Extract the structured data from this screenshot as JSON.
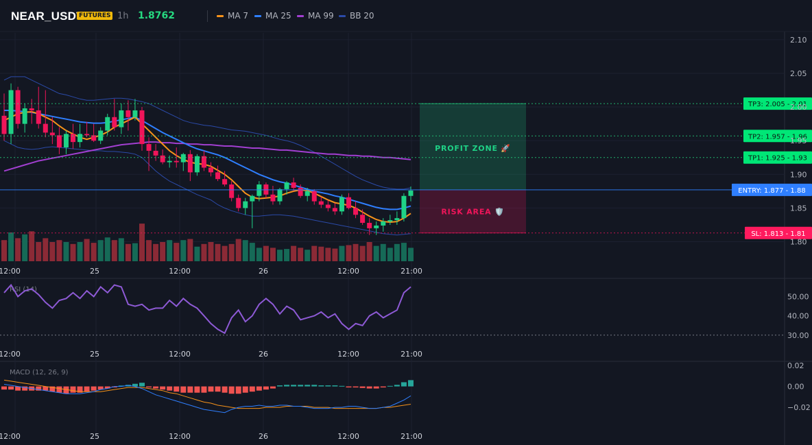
{
  "header": {
    "symbol": "NEAR_USDT",
    "badge": "FUTURES",
    "timeframe": "1h",
    "price": "1.8762",
    "legend": [
      {
        "label": "MA 7",
        "color": "#f7931a"
      },
      {
        "label": "MA 25",
        "color": "#2f7fff"
      },
      {
        "label": "MA 99",
        "color": "#a23fd1"
      },
      {
        "label": "BB 20",
        "color": "#2b4aa8"
      }
    ]
  },
  "colors": {
    "up": "#1fd286",
    "down": "#f0155a",
    "vol_up": "#166a57",
    "vol_down": "#8b2a36",
    "background": "#131722"
  },
  "price_axis": {
    "min": 1.77,
    "max": 2.11,
    "ticks": [
      "2.10",
      "2.05",
      "2.00",
      "1.95",
      "1.90",
      "1.85",
      "1.80"
    ]
  },
  "time_axis": {
    "labels": [
      "12:00",
      "25",
      "12:00",
      "26",
      "12:00",
      "21:00"
    ]
  },
  "zones": {
    "profit_label": "PROFIT ZONE 🚀",
    "risk_label": "RISK AREA 🛡️"
  },
  "levels": [
    {
      "label": "TP3: 2.005 - 2.01",
      "price": 2.005,
      "kind": "tp"
    },
    {
      "label": "TP2: 1.957 - 1.96",
      "price": 1.957,
      "kind": "tp"
    },
    {
      "label": "TP1: 1.925 - 1.93",
      "price": 1.925,
      "kind": "tp"
    },
    {
      "label": "ENTRY: 1.877 - 1.88",
      "price": 1.877,
      "kind": "entry"
    },
    {
      "label": "SL: 1.813 - 1.81",
      "price": 1.813,
      "kind": "sl"
    }
  ],
  "rsi": {
    "title": "RSI (14)",
    "ticks": [
      "50.00",
      "40.00",
      "30.00"
    ],
    "min": 26,
    "max": 58,
    "reference": 30,
    "values": [
      52,
      56,
      50,
      53,
      54,
      51,
      47,
      44,
      48,
      49,
      52,
      49,
      53,
      50,
      55,
      52,
      56,
      55,
      46,
      45,
      46,
      43,
      44,
      44,
      48,
      45,
      49,
      46,
      44,
      40,
      36,
      33,
      31,
      39,
      43,
      37,
      40,
      46,
      49,
      46,
      41,
      45,
      43,
      38,
      39,
      40,
      42,
      39,
      41,
      36,
      33,
      36,
      35,
      40,
      42,
      39,
      41,
      43,
      52,
      55
    ]
  },
  "macd": {
    "title": "MACD (12, 26, 9)",
    "ticks": [
      "0.02",
      "0.00",
      "−0.02"
    ],
    "min": -0.037,
    "max": 0.022,
    "hist": [
      -0.003,
      -0.003,
      -0.004,
      -0.004,
      -0.004,
      -0.004,
      -0.004,
      -0.005,
      -0.006,
      -0.007,
      -0.006,
      -0.006,
      -0.005,
      -0.004,
      -0.003,
      -0.002,
      -0.001,
      0.0008,
      0.0015,
      0.0025,
      0.0035,
      -0.001,
      -0.002,
      -0.003,
      -0.004,
      -0.005,
      -0.006,
      -0.006,
      -0.006,
      -0.006,
      -0.005,
      -0.005,
      -0.006,
      -0.007,
      -0.007,
      -0.006,
      -0.005,
      -0.004,
      -0.003,
      -0.002,
      0.001,
      0.0015,
      0.0015,
      0.0015,
      0.0015,
      0.0015,
      0.001,
      0.001,
      0.001,
      0.0005,
      -0.001,
      -0.001,
      -0.0015,
      -0.002,
      -0.002,
      -0.001,
      0.0005,
      0.0015,
      0.004,
      0.006
    ],
    "macd_line": [
      0.002,
      0.001,
      0.0,
      -0.001,
      -0.002,
      -0.003,
      -0.004,
      -0.005,
      -0.006,
      -0.007,
      -0.007,
      -0.007,
      -0.006,
      -0.005,
      -0.003,
      -0.002,
      0.0,
      0.0,
      0.001,
      0.0,
      -0.002,
      -0.005,
      -0.008,
      -0.01,
      -0.012,
      -0.014,
      -0.016,
      -0.018,
      -0.02,
      -0.022,
      -0.023,
      -0.024,
      -0.025,
      -0.022,
      -0.02,
      -0.019,
      -0.019,
      -0.018,
      -0.019,
      -0.019,
      -0.018,
      -0.018,
      -0.019,
      -0.019,
      -0.02,
      -0.021,
      -0.021,
      -0.021,
      -0.02,
      -0.02,
      -0.019,
      -0.019,
      -0.02,
      -0.021,
      -0.021,
      -0.02,
      -0.019,
      -0.016,
      -0.013,
      -0.009
    ],
    "signal_line": [
      0.006,
      0.005,
      0.004,
      0.003,
      0.002,
      0.001,
      0.0,
      -0.001,
      -0.002,
      -0.003,
      -0.004,
      -0.005,
      -0.005,
      -0.005,
      -0.005,
      -0.004,
      -0.003,
      -0.002,
      -0.001,
      -0.001,
      -0.001,
      -0.002,
      -0.003,
      -0.004,
      -0.006,
      -0.007,
      -0.009,
      -0.011,
      -0.013,
      -0.015,
      -0.016,
      -0.018,
      -0.019,
      -0.02,
      -0.021,
      -0.021,
      -0.021,
      -0.021,
      -0.02,
      -0.02,
      -0.02,
      -0.019,
      -0.019,
      -0.019,
      -0.019,
      -0.02,
      -0.02,
      -0.02,
      -0.021,
      -0.021,
      -0.021,
      -0.021,
      -0.021,
      -0.021,
      -0.021,
      -0.02,
      -0.02,
      -0.019,
      -0.018,
      -0.017
    ]
  },
  "chart_data": {
    "type": "candlestick",
    "title": "NEAR_USDT",
    "xlabel": "",
    "ylabel": "",
    "ylim": [
      1.77,
      2.11
    ],
    "candles": [
      [
        1.987,
        2.02,
        1.95,
        1.96
      ],
      [
        1.96,
        2.035,
        1.945,
        2.025
      ],
      [
        2.025,
        2.03,
        1.968,
        1.975
      ],
      [
        1.975,
        2.005,
        1.962,
        1.998
      ],
      [
        1.998,
        2.012,
        1.975,
        1.995
      ],
      [
        1.995,
        2.03,
        1.968,
        1.975
      ],
      [
        1.975,
        2.025,
        1.955,
        1.962
      ],
      [
        1.962,
        1.985,
        1.945,
        1.958
      ],
      [
        1.958,
        1.97,
        1.93,
        1.94
      ],
      [
        1.94,
        1.965,
        1.93,
        1.96
      ],
      [
        1.96,
        1.975,
        1.938,
        1.948
      ],
      [
        1.948,
        1.975,
        1.94,
        1.96
      ],
      [
        1.96,
        1.978,
        1.955,
        1.958
      ],
      [
        1.958,
        1.975,
        1.948,
        1.95
      ],
      [
        1.95,
        1.97,
        1.945,
        1.965
      ],
      [
        1.965,
        1.99,
        1.958,
        1.985
      ],
      [
        1.985,
        2.012,
        1.965,
        1.97
      ],
      [
        1.97,
        2.005,
        1.96,
        1.995
      ],
      [
        1.995,
        2.01,
        1.965,
        1.985
      ],
      [
        1.985,
        2.012,
        1.98,
        1.995
      ],
      [
        1.995,
        2.0,
        1.935,
        1.945
      ],
      [
        1.945,
        1.955,
        1.905,
        1.935
      ],
      [
        1.935,
        1.945,
        1.92,
        1.928
      ],
      [
        1.928,
        1.937,
        1.915,
        1.918
      ],
      [
        1.918,
        1.928,
        1.91,
        1.92
      ],
      [
        1.92,
        1.94,
        1.91,
        1.918
      ],
      [
        1.918,
        1.932,
        1.905,
        1.93
      ],
      [
        1.93,
        1.936,
        1.89,
        1.903
      ],
      [
        1.903,
        1.93,
        1.898,
        1.927
      ],
      [
        1.927,
        1.935,
        1.905,
        1.91
      ],
      [
        1.91,
        1.918,
        1.897,
        1.903
      ],
      [
        1.903,
        1.913,
        1.89,
        1.893
      ],
      [
        1.893,
        1.905,
        1.882,
        1.885
      ],
      [
        1.885,
        1.89,
        1.86,
        1.865
      ],
      [
        1.865,
        1.87,
        1.845,
        1.85
      ],
      [
        1.85,
        1.865,
        1.84,
        1.86
      ],
      [
        1.86,
        1.87,
        1.82,
        1.868
      ],
      [
        1.868,
        1.89,
        1.86,
        1.885
      ],
      [
        1.885,
        1.888,
        1.865,
        1.87
      ],
      [
        1.87,
        1.883,
        1.855,
        1.86
      ],
      [
        1.86,
        1.88,
        1.855,
        1.878
      ],
      [
        1.878,
        1.89,
        1.87,
        1.888
      ],
      [
        1.888,
        1.895,
        1.875,
        1.88
      ],
      [
        1.88,
        1.885,
        1.865,
        1.868
      ],
      [
        1.868,
        1.88,
        1.86,
        1.875
      ],
      [
        1.875,
        1.878,
        1.855,
        1.86
      ],
      [
        1.86,
        1.867,
        1.85,
        1.855
      ],
      [
        1.855,
        1.862,
        1.845,
        1.85
      ],
      [
        1.85,
        1.857,
        1.84,
        1.845
      ],
      [
        1.845,
        1.87,
        1.84,
        1.866
      ],
      [
        1.866,
        1.872,
        1.848,
        1.85
      ],
      [
        1.85,
        1.86,
        1.835,
        1.84
      ],
      [
        1.84,
        1.848,
        1.825,
        1.828
      ],
      [
        1.828,
        1.835,
        1.81,
        1.82
      ],
      [
        1.82,
        1.83,
        1.81,
        1.824
      ],
      [
        1.824,
        1.835,
        1.815,
        1.83
      ],
      [
        1.83,
        1.84,
        1.825,
        1.832
      ],
      [
        1.832,
        1.845,
        1.825,
        1.835
      ],
      [
        1.835,
        1.872,
        1.83,
        1.868
      ],
      [
        1.868,
        1.882,
        1.86,
        1.876
      ]
    ],
    "volume": [
      0.55,
      0.75,
      0.6,
      0.7,
      0.78,
      0.5,
      0.6,
      0.5,
      0.55,
      0.5,
      0.45,
      0.5,
      0.58,
      0.48,
      0.55,
      0.62,
      0.55,
      0.6,
      0.45,
      0.47,
      0.98,
      0.55,
      0.45,
      0.5,
      0.55,
      0.48,
      0.55,
      0.58,
      0.38,
      0.45,
      0.5,
      0.45,
      0.4,
      0.45,
      0.58,
      0.55,
      0.48,
      0.35,
      0.4,
      0.35,
      0.3,
      0.32,
      0.4,
      0.35,
      0.3,
      0.4,
      0.38,
      0.35,
      0.33,
      0.4,
      0.42,
      0.45,
      0.4,
      0.5,
      0.4,
      0.45,
      0.35,
      0.45,
      0.48,
      0.35
    ],
    "ma7": [
      1.98,
      1.985,
      1.99,
      1.992,
      1.993,
      1.99,
      1.985,
      1.98,
      1.972,
      1.965,
      1.96,
      1.955,
      1.952,
      1.955,
      1.958,
      1.963,
      1.97,
      1.975,
      1.98,
      1.985,
      1.975,
      1.965,
      1.955,
      1.945,
      1.935,
      1.928,
      1.922,
      1.918,
      1.916,
      1.915,
      1.912,
      1.906,
      1.9,
      1.892,
      1.882,
      1.872,
      1.866,
      1.864,
      1.865,
      1.866,
      1.868,
      1.872,
      1.875,
      1.877,
      1.876,
      1.872,
      1.867,
      1.862,
      1.858,
      1.856,
      1.854,
      1.85,
      1.844,
      1.838,
      1.833,
      1.83,
      1.829,
      1.83,
      1.835,
      1.842
    ],
    "ma25": [
      1.995,
      1.995,
      1.994,
      1.993,
      1.992,
      1.99,
      1.988,
      1.986,
      1.984,
      1.982,
      1.98,
      1.978,
      1.977,
      1.976,
      1.976,
      1.977,
      1.979,
      1.981,
      1.983,
      1.985,
      1.98,
      1.974,
      1.968,
      1.962,
      1.957,
      1.952,
      1.947,
      1.942,
      1.938,
      1.935,
      1.932,
      1.929,
      1.925,
      1.92,
      1.915,
      1.91,
      1.905,
      1.9,
      1.896,
      1.892,
      1.889,
      1.887,
      1.884,
      1.881,
      1.878,
      1.875,
      1.873,
      1.871,
      1.868,
      1.866,
      1.863,
      1.86,
      1.857,
      1.854,
      1.851,
      1.849,
      1.848,
      1.848,
      1.85,
      1.853
    ],
    "ma99": [
      1.905,
      1.908,
      1.911,
      1.914,
      1.917,
      1.92,
      1.922,
      1.924,
      1.926,
      1.928,
      1.93,
      1.932,
      1.934,
      1.936,
      1.938,
      1.94,
      1.942,
      1.944,
      1.945,
      1.946,
      1.947,
      1.948,
      1.948,
      1.947,
      1.947,
      1.946,
      1.946,
      1.945,
      1.945,
      1.944,
      1.944,
      1.943,
      1.942,
      1.942,
      1.941,
      1.94,
      1.939,
      1.939,
      1.938,
      1.937,
      1.936,
      1.936,
      1.935,
      1.934,
      1.933,
      1.932,
      1.931,
      1.93,
      1.93,
      1.929,
      1.928,
      1.928,
      1.927,
      1.927,
      1.926,
      1.925,
      1.925,
      1.924,
      1.923,
      1.922
    ],
    "bb_upper": [
      2.04,
      2.045,
      2.045,
      2.045,
      2.04,
      2.035,
      2.03,
      2.025,
      2.02,
      2.018,
      2.015,
      2.012,
      2.01,
      2.01,
      2.011,
      2.012,
      2.013,
      2.013,
      2.012,
      2.01,
      2.008,
      2.005,
      2.0,
      1.995,
      1.99,
      1.985,
      1.98,
      1.977,
      1.975,
      1.973,
      1.972,
      1.97,
      1.968,
      1.966,
      1.965,
      1.964,
      1.962,
      1.96,
      1.958,
      1.955,
      1.952,
      1.95,
      1.947,
      1.943,
      1.938,
      1.933,
      1.927,
      1.921,
      1.915,
      1.909,
      1.903,
      1.897,
      1.892,
      1.888,
      1.884,
      1.881,
      1.879,
      1.878,
      1.878,
      1.88
    ],
    "bb_lower": [
      1.95,
      1.945,
      1.94,
      1.938,
      1.937,
      1.938,
      1.94,
      1.941,
      1.94,
      1.939,
      1.938,
      1.937,
      1.936,
      1.935,
      1.935,
      1.934,
      1.934,
      1.933,
      1.932,
      1.93,
      1.925,
      1.915,
      1.905,
      1.897,
      1.89,
      1.885,
      1.88,
      1.875,
      1.87,
      1.866,
      1.862,
      1.855,
      1.85,
      1.846,
      1.843,
      1.84,
      1.838,
      1.838,
      1.839,
      1.84,
      1.84,
      1.839,
      1.838,
      1.836,
      1.834,
      1.832,
      1.83,
      1.828,
      1.826,
      1.824,
      1.822,
      1.82,
      1.818,
      1.816,
      1.814,
      1.812,
      1.811,
      1.81,
      1.811,
      1.812
    ]
  }
}
